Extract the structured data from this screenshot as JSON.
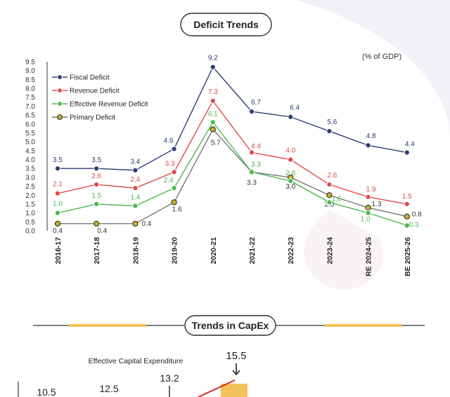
{
  "header": {
    "title": "Deficit Trends"
  },
  "unit_note": "(% of GDP)",
  "section2": {
    "title": "Trends in CapEx",
    "label": "Effective Capital Expenditure",
    "values": [
      "10.5",
      "12.5",
      "13.2",
      "15.5"
    ]
  },
  "colors": {
    "fiscal": "#2d3e74",
    "revenue": "#e04a4a",
    "effective_revenue": "#4cb84c",
    "primary": "#777777",
    "primary_marker": "#c9b22b",
    "accent_bar": "#f4c25a",
    "capex_line": "#d32a2a"
  },
  "chart_data": {
    "type": "line",
    "title": "Deficit Trends",
    "ylabel": "",
    "xlabel": "",
    "ylim": [
      0,
      9.5
    ],
    "yticks": [
      "0.0",
      "0.5",
      "1.0",
      "1.5",
      "2.0",
      "2.5",
      "3.0",
      "3.5",
      "4.0",
      "4.5",
      "5.0",
      "5.5",
      "6.0",
      "6.5",
      "7.0",
      "7.5",
      "8.0",
      "8.5",
      "9.0",
      "9.5"
    ],
    "categories": [
      "2016-17",
      "2017-18",
      "2018-19",
      "2019-20",
      "2020-21",
      "2021-22",
      "2022-23",
      "2023-24",
      "RE 2024-25",
      "BE 2025-26"
    ],
    "legend_position": "top-left",
    "grid": false,
    "series": [
      {
        "name": "Fiscal Deficit",
        "key": "fiscal",
        "values": [
          3.5,
          3.5,
          3.4,
          4.6,
          9.2,
          6.7,
          6.4,
          5.6,
          4.8,
          4.4
        ],
        "labels": [
          "3.5",
          "3.5",
          "3.4",
          "4.6",
          "9.2",
          "6.7",
          "6.4",
          "5.6",
          "4.8",
          "4.4"
        ]
      },
      {
        "name": "Revenue Deficit",
        "key": "revenue",
        "values": [
          2.1,
          2.6,
          2.4,
          3.3,
          7.3,
          4.4,
          4.0,
          2.6,
          1.9,
          1.5
        ],
        "labels": [
          "2.1",
          "2.6",
          "2.4",
          "3.3",
          "7.3",
          "4.4",
          "4.0",
          "2.6",
          "1.9",
          "1.5"
        ]
      },
      {
        "name": "Effective Revenue Deficit",
        "key": "effective_revenue",
        "values": [
          1.0,
          1.5,
          1.4,
          2.4,
          6.1,
          3.3,
          2.8,
          1.6,
          1.0,
          0.3
        ],
        "labels": [
          "1.0",
          "1.5",
          "1.4",
          "2.4",
          "6.1",
          "3.3",
          "2.8",
          "1.6",
          "1.0",
          "0.3"
        ]
      },
      {
        "name": "Primary Deficit",
        "key": "primary",
        "values": [
          0.4,
          0.4,
          0.4,
          1.6,
          5.7,
          3.3,
          3.0,
          2.0,
          1.3,
          0.8
        ],
        "labels": [
          "0.4",
          "0.4",
          "0.4",
          "1.6",
          "5.7",
          "3.3",
          "3.0",
          "2.0",
          "1.3",
          "0.8"
        ]
      }
    ]
  }
}
